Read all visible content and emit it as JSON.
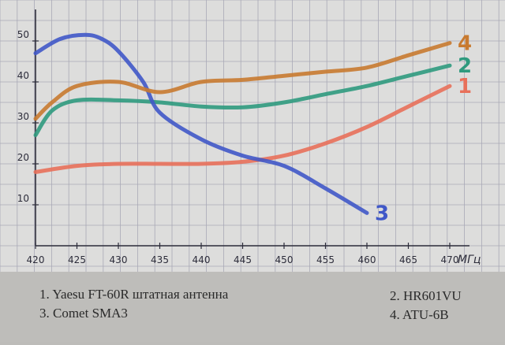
{
  "chart_data": {
    "type": "line",
    "xlabel": "МГц",
    "ylabel": "",
    "xlim": [
      420,
      470
    ],
    "ylim": [
      0,
      55
    ],
    "x_ticks": [
      "420",
      "425",
      "430",
      "435",
      "440",
      "445",
      "450",
      "455",
      "460",
      "465",
      "470"
    ],
    "y_ticks": [
      "10",
      "20",
      "30",
      "40",
      "50"
    ],
    "grid": true,
    "series": [
      {
        "name": "1",
        "color": "#e8705a",
        "x": [
          420,
          425,
          430,
          435,
          440,
          445,
          450,
          455,
          460,
          465,
          470
        ],
        "y": [
          18,
          19.5,
          20,
          20,
          20,
          20.5,
          22,
          25,
          29,
          34,
          39
        ]
      },
      {
        "name": "2",
        "color": "#2f9a7e",
        "x": [
          420,
          422,
          425,
          430,
          435,
          440,
          445,
          450,
          455,
          460,
          465,
          470
        ],
        "y": [
          27,
          33,
          35.5,
          35.5,
          35,
          34,
          33.8,
          35,
          37,
          39,
          41.5,
          44
        ]
      },
      {
        "name": "3",
        "color": "#4058c8",
        "x": [
          420,
          423,
          426,
          428,
          430,
          433,
          435,
          440,
          445,
          450,
          455,
          460
        ],
        "y": [
          47,
          50.5,
          51.5,
          50.5,
          47.5,
          40,
          32.5,
          26,
          22,
          19.5,
          14,
          8
        ]
      },
      {
        "name": "4",
        "color": "#c87a30",
        "x": [
          420,
          422,
          425,
          430,
          435,
          440,
          445,
          450,
          455,
          460,
          465,
          470
        ],
        "y": [
          31,
          35,
          39,
          40,
          37.5,
          40,
          40.5,
          41.5,
          42.5,
          43.5,
          46.5,
          49.5
        ]
      }
    ]
  },
  "legend": {
    "item1": "1. Yaesu FT-60R штатная антенна",
    "item2": "2. HR601VU",
    "item3": "3. Comet SMA3",
    "item4": "4. ATU-6B"
  }
}
